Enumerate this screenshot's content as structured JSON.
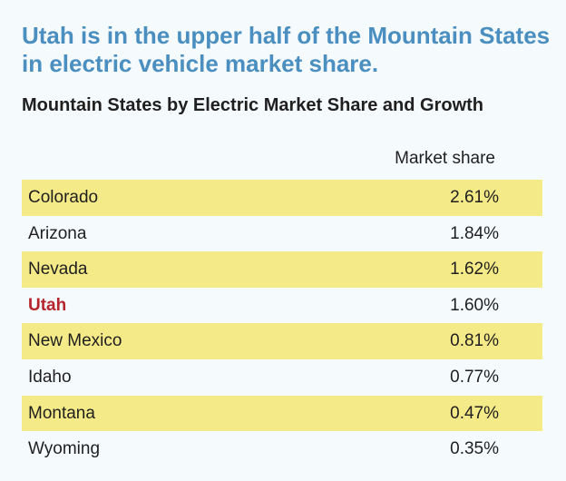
{
  "chart_data": {
    "type": "table",
    "title": "Utah is in the upper half of the Mountain States in electric vehicle market share.",
    "subtitle": "Mountain States by Electric Market Share and Growth",
    "columns": [
      "",
      "Market share"
    ],
    "highlight": "Utah",
    "colors": {
      "title": "#4a8fbf",
      "row_shade": "#f4ea88",
      "highlight_text": "#b5252e",
      "background": "#f5fafd"
    },
    "rows": [
      {
        "state": "Colorado",
        "value": 2.61,
        "label": "2.61%"
      },
      {
        "state": "Arizona",
        "value": 1.84,
        "label": "1.84%"
      },
      {
        "state": "Nevada",
        "value": 1.62,
        "label": "1.62%"
      },
      {
        "state": "Utah",
        "value": 1.6,
        "label": "1.60%"
      },
      {
        "state": "New Mexico",
        "value": 0.81,
        "label": "0.81%"
      },
      {
        "state": "Idaho",
        "value": 0.77,
        "label": "0.77%"
      },
      {
        "state": "Montana",
        "value": 0.47,
        "label": "0.47%"
      },
      {
        "state": "Wyoming",
        "value": 0.35,
        "label": "0.35%"
      }
    ]
  }
}
